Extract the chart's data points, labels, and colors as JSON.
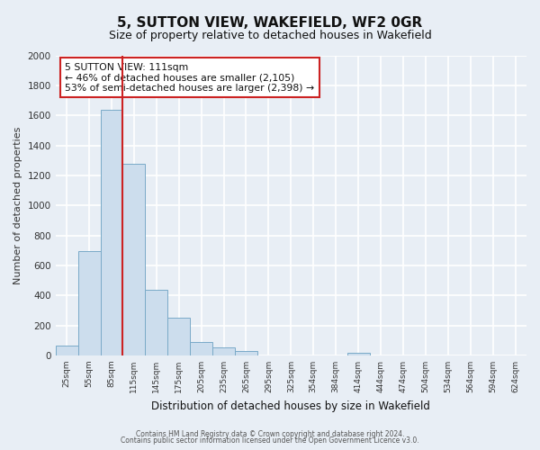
{
  "title": "5, SUTTON VIEW, WAKEFIELD, WF2 0GR",
  "subtitle": "Size of property relative to detached houses in Wakefield",
  "xlabel": "Distribution of detached houses by size in Wakefield",
  "ylabel": "Number of detached properties",
  "bar_labels": [
    "25sqm",
    "55sqm",
    "85sqm",
    "115sqm",
    "145sqm",
    "175sqm",
    "205sqm",
    "235sqm",
    "265sqm",
    "295sqm",
    "325sqm",
    "354sqm",
    "384sqm",
    "414sqm",
    "444sqm",
    "474sqm",
    "504sqm",
    "534sqm",
    "564sqm",
    "594sqm",
    "624sqm"
  ],
  "bar_values": [
    65,
    695,
    1635,
    1280,
    435,
    250,
    88,
    52,
    30,
    0,
    0,
    0,
    0,
    18,
    0,
    0,
    0,
    0,
    0,
    0,
    0
  ],
  "bar_color": "#ccdded",
  "bar_edge_color": "#7aaac8",
  "annotation_line1": "5 SUTTON VIEW: 111sqm",
  "annotation_line2": "← 46% of detached houses are smaller (2,105)",
  "annotation_line3": "53% of semi-detached houses are larger (2,398) →",
  "annotation_box_color": "#ffffff",
  "annotation_box_edge": "#cc2222",
  "red_line_color": "#cc2222",
  "ylim": [
    0,
    2000
  ],
  "yticks": [
    0,
    200,
    400,
    600,
    800,
    1000,
    1200,
    1400,
    1600,
    1800,
    2000
  ],
  "footer1": "Contains HM Land Registry data © Crown copyright and database right 2024.",
  "footer2": "Contains public sector information licensed under the Open Government Licence v3.0.",
  "bg_color": "#e8eef5",
  "plot_bg_color": "#e8eef5",
  "grid_color": "#ffffff",
  "bar_width": 1.0
}
